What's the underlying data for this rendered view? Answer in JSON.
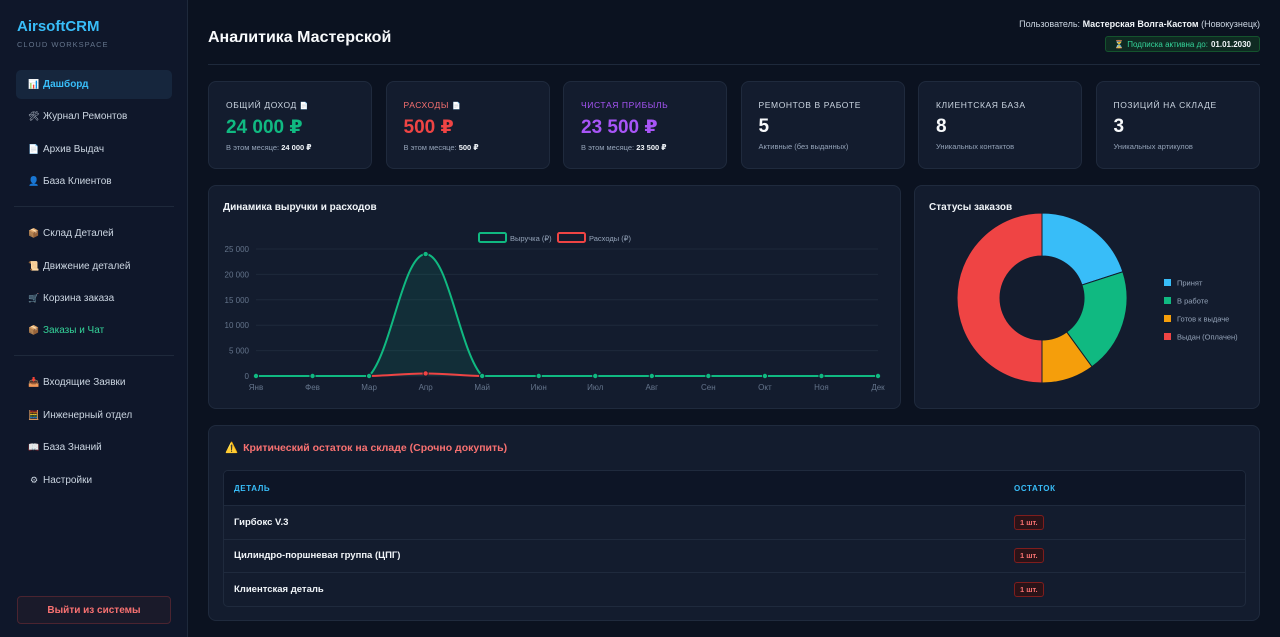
{
  "brand": {
    "name": "AirsoftCRM",
    "sub": "CLOUD WORKSPACE"
  },
  "nav_group1": [
    {
      "icon": "📊",
      "label": "Дашборд",
      "active": true
    },
    {
      "icon": "🛠",
      "label": "Журнал Ремонтов"
    },
    {
      "icon": "📄",
      "label": "Архив Выдач"
    },
    {
      "icon": "👤",
      "label": "База Клиентов"
    }
  ],
  "nav_group2": [
    {
      "icon": "📦",
      "label": "Склад Деталей"
    },
    {
      "icon": "📜",
      "label": "Движение деталей"
    },
    {
      "icon": "🛒",
      "label": "Корзина заказа"
    },
    {
      "icon": "📦",
      "label": "Заказы и Чат",
      "green": true
    }
  ],
  "nav_group3": [
    {
      "icon": "📥",
      "label": "Входящие Заявки"
    },
    {
      "icon": "🧮",
      "label": "Инженерный отдел"
    },
    {
      "icon": "📖",
      "label": "База Знаний"
    },
    {
      "icon": "⚙",
      "label": "Настройки"
    }
  ],
  "logout_label": "Выйти из системы",
  "header": {
    "title": "Аналитика Мастерской",
    "user_prefix": "Пользователь:",
    "user_name": "Мастерская Волга-Кастом",
    "user_city": "(Новокузнецк)",
    "subscription_icon": "⏳",
    "subscription_text": "Подписка активна до:",
    "subscription_date": "01.01.2030"
  },
  "stats": [
    {
      "label": "ОБЩИЙ ДОХОД",
      "icon": "📄",
      "value": "24 000 ₽",
      "sub_prefix": "В этом месяце:",
      "sub_value": "24 000 ₽",
      "label_color": "#cbd5e1",
      "value_color": "#10b981"
    },
    {
      "label": "РАСХОДЫ",
      "icon": "📄",
      "value": "500 ₽",
      "sub_prefix": "В этом месяце:",
      "sub_value": "500 ₽",
      "label_color": "#f87171",
      "value_color": "#ef4444"
    },
    {
      "label": "ЧИСТАЯ ПРИБЫЛЬ",
      "icon": "",
      "value": "23 500 ₽",
      "sub_prefix": "В этом месяце:",
      "sub_value": "23 500 ₽",
      "label_color": "#a855f7",
      "value_color": "#a855f7"
    },
    {
      "label": "РЕМОНТОВ В РАБОТЕ",
      "icon": "",
      "value": "5",
      "sub_prefix": "Активные (без выданных)",
      "sub_value": "",
      "label_color": "#cbd5e1",
      "value_color": "#f8fafc"
    },
    {
      "label": "КЛИЕНТСКАЯ БАЗА",
      "icon": "",
      "value": "8",
      "sub_prefix": "Уникальных контактов",
      "sub_value": "",
      "label_color": "#cbd5e1",
      "value_color": "#f8fafc"
    },
    {
      "label": "ПОЗИЦИЙ НА СКЛАДЕ",
      "icon": "",
      "value": "3",
      "sub_prefix": "Уникальных артикулов",
      "sub_value": "",
      "label_color": "#cbd5e1",
      "value_color": "#f8fafc"
    }
  ],
  "chart_data": [
    {
      "type": "line",
      "title": "Динамика выручки и расходов",
      "categories": [
        "Янв",
        "Фев",
        "Мар",
        "Апр",
        "Май",
        "Июн",
        "Июл",
        "Авг",
        "Сен",
        "Окт",
        "Ноя",
        "Дек"
      ],
      "series": [
        {
          "name": "Выручка (₽)",
          "color": "#10b981",
          "values": [
            0,
            0,
            0,
            24000,
            0,
            0,
            0,
            0,
            0,
            0,
            0,
            0
          ]
        },
        {
          "name": "Расходы (₽)",
          "color": "#ef4444",
          "values": [
            0,
            0,
            0,
            500,
            0,
            0,
            0,
            0,
            0,
            0,
            0,
            0
          ]
        }
      ],
      "ylim": [
        0,
        25000
      ],
      "yticks": [
        "25 000",
        "20 000",
        "15 000",
        "10 000",
        "5 000",
        "0"
      ],
      "ytick_values": [
        25000,
        20000,
        15000,
        10000,
        5000,
        0
      ],
      "legend": "top-center",
      "grid": true
    },
    {
      "type": "pie",
      "title": "Статусы заказов",
      "legend": "right",
      "slices": [
        {
          "label": "Принят",
          "value": 2,
          "color": "#38bdf8"
        },
        {
          "label": "В работе",
          "value": 2,
          "color": "#10b981"
        },
        {
          "label": "Готов к выдаче",
          "value": 1,
          "color": "#f59e0b"
        },
        {
          "label": "Выдан (Оплачен)",
          "value": 5,
          "color": "#ef4444"
        }
      ]
    }
  ],
  "critical": {
    "icon": "⚠️",
    "title": "Критический остаток на складе (Срочно докупить)",
    "columns": [
      "ДЕТАЛЬ",
      "ОСТАТОК"
    ],
    "rows": [
      {
        "part": "Гирбокс V.3",
        "qty": "1 шт."
      },
      {
        "part": "Цилиндро-поршневая группа (ЦПГ)",
        "qty": "1 шт."
      },
      {
        "part": "Клиентская деталь",
        "qty": "1 шт."
      }
    ]
  }
}
